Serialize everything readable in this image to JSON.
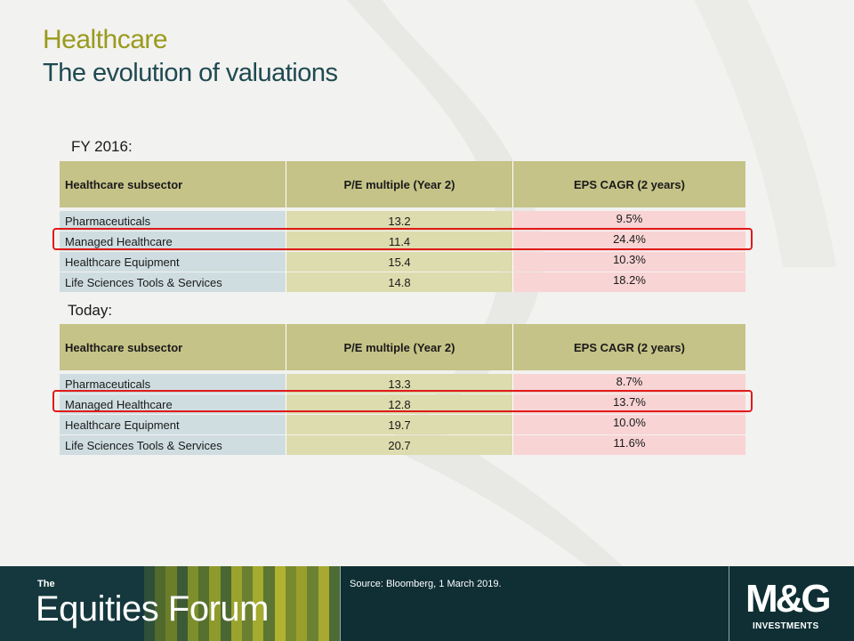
{
  "title": "Healthcare",
  "subtitle": "The evolution of valuations",
  "tables": [
    {
      "label": "FY 2016:",
      "headers": [
        "Healthcare subsector",
        "P/E multiple (Year 2)",
        "EPS CAGR (2 years)"
      ],
      "rows": [
        [
          "Pharmaceuticals",
          "13.2",
          "9.5%"
        ],
        [
          "Managed Healthcare",
          "11.4",
          "24.4%"
        ],
        [
          "Healthcare Equipment",
          "15.4",
          "10.3%"
        ],
        [
          "Life Sciences Tools & Services",
          "14.8",
          "18.2%"
        ]
      ]
    },
    {
      "label": "Today:",
      "headers": [
        "Healthcare subsector",
        "P/E multiple (Year 2)",
        "EPS CAGR (2 years)"
      ],
      "rows": [
        [
          "Pharmaceuticals",
          "13.3",
          "8.7%"
        ],
        [
          "Managed Healthcare",
          "12.8",
          "13.7%"
        ],
        [
          "Healthcare Equipment",
          "19.7",
          "10.0%"
        ],
        [
          "Life Sciences Tools & Services",
          "20.7",
          "11.6%"
        ]
      ]
    }
  ],
  "footer": {
    "brand_small": "The",
    "brand_name": "Equities Forum",
    "source": "Source: Bloomberg, 1 March 2019.",
    "logo_text": "M&G",
    "logo_sub": "INVESTMENTS"
  },
  "colors": {
    "title": "#9a9a1e",
    "subtitle": "#1f4a52",
    "header_bg": "#c5c387",
    "col1_bg": "#cfdde0",
    "col2_bg": "#dcdcae",
    "col3_bg": "#f8d4d4",
    "highlight": "#e01a1a",
    "footer_bg": "#0f2f34"
  }
}
